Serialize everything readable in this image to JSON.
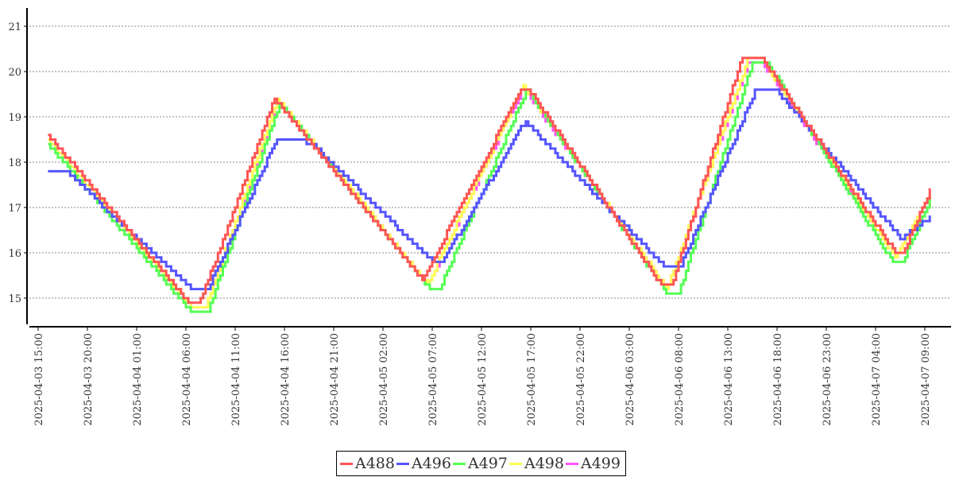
{
  "chart_data": {
    "type": "line",
    "title": "",
    "xlabel": "",
    "ylabel": "",
    "ylim": [
      14.4,
      21.4
    ],
    "yticks": [
      15,
      16,
      17,
      18,
      19,
      20,
      21
    ],
    "grid": true,
    "legend_position": "bottom",
    "x_start": "2025-04-03 15:00",
    "x_unit": "hours since x_start",
    "xticks": [
      "2025-04-03 15:00",
      "2025-04-03 20:00",
      "2025-04-04 01:00",
      "2025-04-04 06:00",
      "2025-04-04 11:00",
      "2025-04-04 16:00",
      "2025-04-04 21:00",
      "2025-04-05 02:00",
      "2025-04-05 07:00",
      "2025-04-05 12:00",
      "2025-04-05 17:00",
      "2025-04-05 22:00",
      "2025-04-06 03:00",
      "2025-04-06 08:00",
      "2025-04-06 13:00",
      "2025-04-06 18:00",
      "2025-04-06 23:00",
      "2025-04-07 04:00",
      "2025-04-07 09:00"
    ],
    "series": [
      {
        "name": "A499",
        "color": "#ff55ff",
        "points": [
          [
            1,
            18.5
          ],
          [
            15.5,
            14.8
          ],
          [
            17,
            14.8
          ],
          [
            24.3,
            19.35
          ],
          [
            39.5,
            15.3
          ],
          [
            49.2,
            19.65
          ],
          [
            63.8,
            15.2
          ],
          [
            72,
            20.2
          ],
          [
            73.5,
            20.2
          ],
          [
            87,
            15.9
          ],
          [
            90.6,
            17.3
          ]
        ]
      },
      {
        "name": "A498",
        "color": "#ffff55",
        "points": [
          [
            1,
            18.5
          ],
          [
            15.5,
            14.8
          ],
          [
            17,
            14.8
          ],
          [
            24.3,
            19.4
          ],
          [
            39.5,
            15.3
          ],
          [
            49.2,
            19.7
          ],
          [
            63.8,
            15.2
          ],
          [
            72,
            20.25
          ],
          [
            73.5,
            20.25
          ],
          [
            87,
            15.9
          ],
          [
            90.6,
            17.3
          ]
        ]
      },
      {
        "name": "A497",
        "color": "#55ff55",
        "points": [
          [
            1,
            18.4
          ],
          [
            15.5,
            14.7
          ],
          [
            17.2,
            14.7
          ],
          [
            24.5,
            19.3
          ],
          [
            39.7,
            15.2
          ],
          [
            40.7,
            15.2
          ],
          [
            49.6,
            19.6
          ],
          [
            63.8,
            15.1
          ],
          [
            65,
            15.1
          ],
          [
            72.5,
            20.2
          ],
          [
            74,
            20.2
          ],
          [
            86.7,
            15.8
          ],
          [
            87.7,
            15.8
          ],
          [
            90.6,
            17.2
          ]
        ]
      },
      {
        "name": "A496",
        "color": "#5555ff",
        "points": [
          [
            1,
            17.8
          ],
          [
            2.8,
            17.8
          ],
          [
            15.6,
            15.2
          ],
          [
            17.2,
            15.2
          ],
          [
            24.2,
            18.5
          ],
          [
            26.2,
            18.5
          ],
          [
            27.8,
            18.4
          ],
          [
            40,
            15.8
          ],
          [
            41,
            15.8
          ],
          [
            49.4,
            18.9
          ],
          [
            63.5,
            15.7
          ],
          [
            65.2,
            15.7
          ],
          [
            72.8,
            19.6
          ],
          [
            74.9,
            19.6
          ],
          [
            87.6,
            16.3
          ],
          [
            90.6,
            16.8
          ]
        ]
      },
      {
        "name": "A488",
        "color": "#ff5555",
        "points": [
          [
            1,
            18.6
          ],
          [
            15.3,
            14.9
          ],
          [
            16.4,
            14.9
          ],
          [
            24,
            19.4
          ],
          [
            39,
            15.4
          ],
          [
            49,
            19.6
          ],
          [
            49.8,
            19.6
          ],
          [
            63.2,
            15.3
          ],
          [
            64.3,
            15.3
          ],
          [
            71.4,
            20.3
          ],
          [
            73.4,
            20.3
          ],
          [
            87,
            16.0
          ],
          [
            87.8,
            16.0
          ],
          [
            90.6,
            17.4
          ]
        ]
      }
    ],
    "legend": [
      "A488",
      "A496",
      "A497",
      "A498",
      "A499"
    ]
  }
}
